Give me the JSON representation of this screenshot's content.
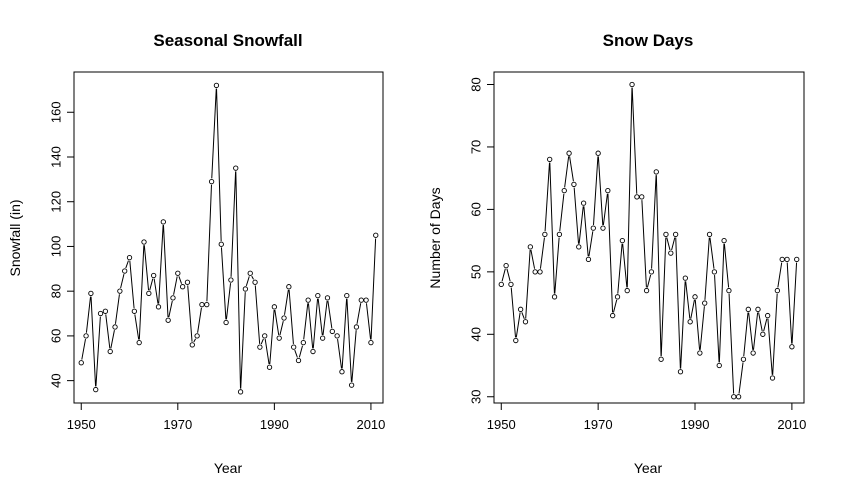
{
  "chart_data": [
    {
      "type": "line",
      "title": "Seasonal Snowfall",
      "xlabel": "Year",
      "ylabel": "Snowfall (in)",
      "xlim": [
        1948.5,
        2012.5
      ],
      "ylim": [
        30,
        178
      ],
      "xticks": [
        1950,
        1970,
        1990,
        2010
      ],
      "yticks": [
        40,
        60,
        80,
        100,
        120,
        140,
        160
      ],
      "grid": false,
      "series": [
        {
          "x": [
            1950,
            1951,
            1952,
            1953,
            1954,
            1955,
            1956,
            1957,
            1958,
            1959,
            1960,
            1961,
            1962,
            1963,
            1964,
            1965,
            1966,
            1967,
            1968,
            1969,
            1970,
            1971,
            1972,
            1973,
            1974,
            1975,
            1976,
            1977,
            1978,
            1979,
            1980,
            1981,
            1982,
            1983,
            1984,
            1985,
            1986,
            1987,
            1988,
            1989,
            1990,
            1991,
            1992,
            1993,
            1994,
            1995,
            1996,
            1997,
            1998,
            1999,
            2000,
            2001,
            2002,
            2003,
            2004,
            2005,
            2006,
            2007,
            2008,
            2009,
            2010,
            2011
          ],
          "y": [
            48,
            60,
            79,
            36,
            70,
            71,
            53,
            64,
            80,
            89,
            95,
            71,
            57,
            102,
            79,
            87,
            73,
            111,
            67,
            77,
            88,
            82,
            84,
            56,
            60,
            74,
            74,
            129,
            172,
            101,
            66,
            85,
            135,
            35,
            81,
            88,
            84,
            55,
            60,
            46,
            73,
            59,
            68,
            82,
            55,
            49,
            57,
            76,
            53,
            78,
            59,
            77,
            62,
            60,
            44,
            78,
            38,
            64,
            76,
            76,
            57,
            105
          ]
        }
      ]
    },
    {
      "type": "line",
      "title": "Snow Days",
      "xlabel": "Year",
      "ylabel": "Number of Days",
      "xlim": [
        1948.5,
        2012.5
      ],
      "ylim": [
        29,
        82
      ],
      "xticks": [
        1950,
        1970,
        1990,
        2010
      ],
      "yticks": [
        30,
        40,
        50,
        60,
        70,
        80
      ],
      "grid": false,
      "series": [
        {
          "x": [
            1950,
            1951,
            1952,
            1953,
            1954,
            1955,
            1956,
            1957,
            1958,
            1959,
            1960,
            1961,
            1962,
            1963,
            1964,
            1965,
            1966,
            1967,
            1968,
            1969,
            1970,
            1971,
            1972,
            1973,
            1974,
            1975,
            1976,
            1977,
            1978,
            1979,
            1980,
            1981,
            1982,
            1983,
            1984,
            1985,
            1986,
            1987,
            1988,
            1989,
            1990,
            1991,
            1992,
            1993,
            1994,
            1995,
            1996,
            1997,
            1998,
            1999,
            2000,
            2001,
            2002,
            2003,
            2004,
            2005,
            2006,
            2007,
            2008,
            2009,
            2010,
            2011
          ],
          "y": [
            48,
            51,
            48,
            39,
            44,
            42,
            54,
            50,
            50,
            56,
            68,
            46,
            56,
            63,
            69,
            64,
            54,
            61,
            52,
            57,
            69,
            57,
            63,
            43,
            46,
            55,
            47,
            80,
            62,
            62,
            47,
            50,
            66,
            36,
            56,
            53,
            56,
            34,
            49,
            42,
            46,
            37,
            45,
            56,
            50,
            35,
            55,
            47,
            30,
            30,
            36,
            44,
            37,
            44,
            40,
            43,
            33,
            47,
            52,
            52,
            38,
            52
          ]
        }
      ]
    }
  ]
}
